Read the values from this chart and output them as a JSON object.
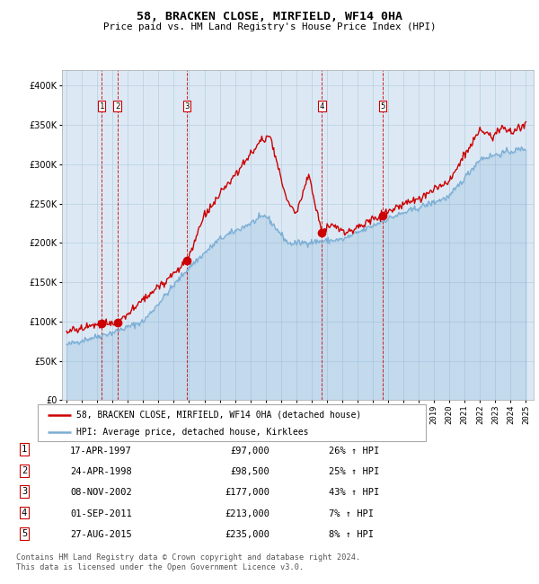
{
  "title": "58, BRACKEN CLOSE, MIRFIELD, WF14 0HA",
  "subtitle": "Price paid vs. HM Land Registry's House Price Index (HPI)",
  "footer1": "Contains HM Land Registry data © Crown copyright and database right 2024.",
  "footer2": "This data is licensed under the Open Government Licence v3.0.",
  "legend_line1": "58, BRACKEN CLOSE, MIRFIELD, WF14 0HA (detached house)",
  "legend_line2": "HPI: Average price, detached house, Kirklees",
  "sales": [
    {
      "num": 1,
      "date": "17-APR-1997",
      "price": 97000,
      "hpi_pct": "26% ↑ HPI",
      "year": 1997.29
    },
    {
      "num": 2,
      "date": "24-APR-1998",
      "price": 98500,
      "hpi_pct": "25% ↑ HPI",
      "year": 1998.32
    },
    {
      "num": 3,
      "date": "08-NOV-2002",
      "price": 177000,
      "hpi_pct": "43% ↑ HPI",
      "year": 2002.85
    },
    {
      "num": 4,
      "date": "01-SEP-2011",
      "price": 213000,
      "hpi_pct": "7% ↑ HPI",
      "year": 2011.67
    },
    {
      "num": 5,
      "date": "27-AUG-2015",
      "price": 235000,
      "hpi_pct": "8% ↑ HPI",
      "year": 2015.65
    }
  ],
  "hpi_color": "#7aadd4",
  "price_color": "#cc0000",
  "bg_color": "#dce9f5",
  "grid_color": "#b8cfe0",
  "dashed_color": "#cc0000",
  "ylim": [
    0,
    420000
  ],
  "yticks": [
    0,
    50000,
    100000,
    150000,
    200000,
    250000,
    300000,
    350000,
    400000
  ],
  "xlim_start": 1994.7,
  "xlim_end": 2025.5,
  "xticks": [
    1995,
    1996,
    1997,
    1998,
    1999,
    2000,
    2001,
    2002,
    2003,
    2004,
    2005,
    2006,
    2007,
    2008,
    2009,
    2010,
    2011,
    2012,
    2013,
    2014,
    2015,
    2016,
    2017,
    2018,
    2019,
    2020,
    2021,
    2022,
    2023,
    2024,
    2025
  ]
}
